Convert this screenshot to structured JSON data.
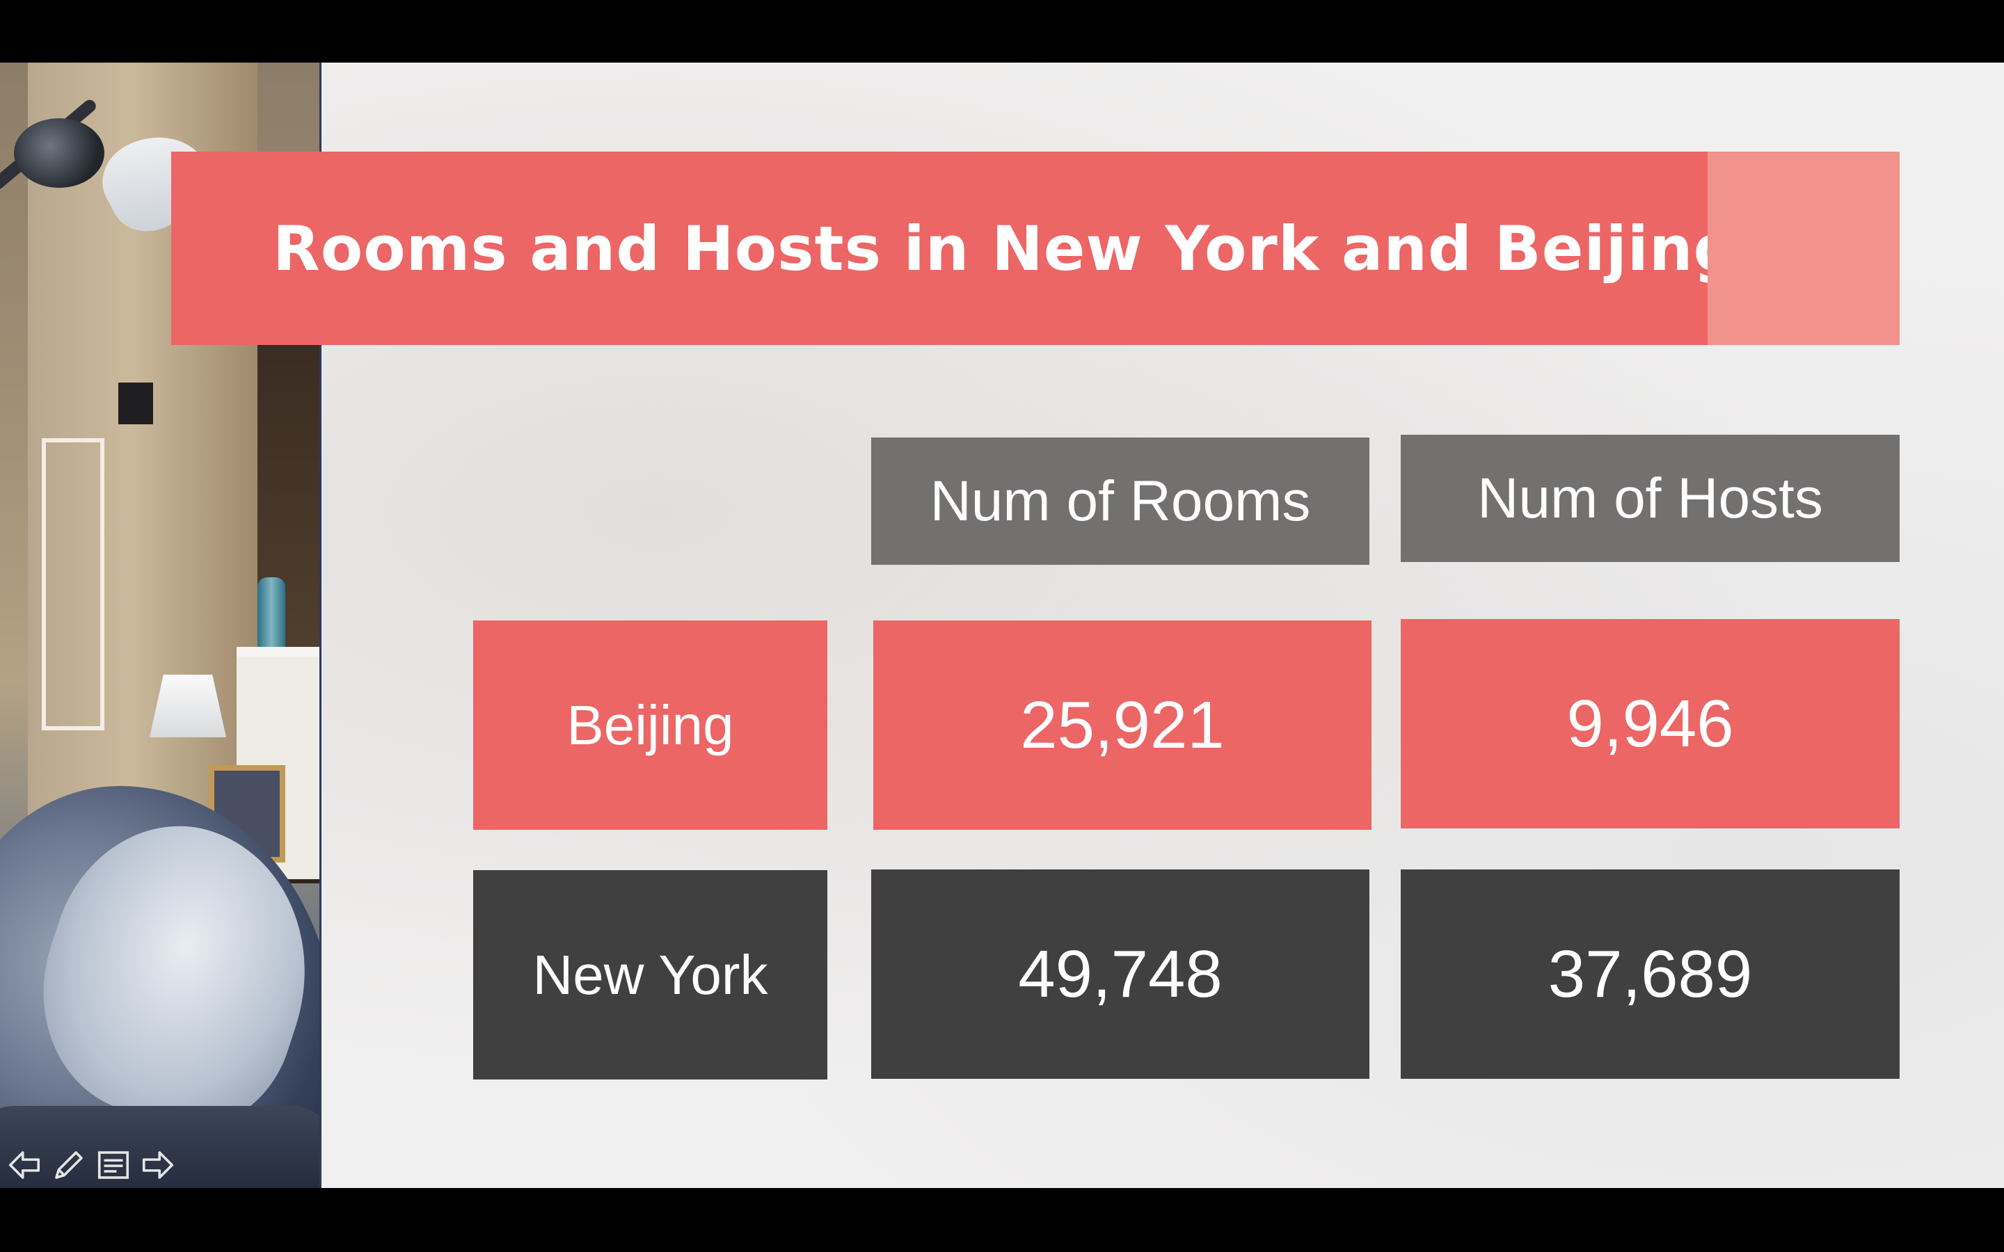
{
  "slide": {
    "title": "Rooms and Hosts in New York and Beijing",
    "table": {
      "headers": [
        "Num of Rooms",
        "Num of Hosts"
      ],
      "rows": [
        {
          "city": "Beijing",
          "rooms": "25,921",
          "hosts": "9,946"
        },
        {
          "city": "New York",
          "rooms": "49,748",
          "hosts": "37,689"
        }
      ]
    }
  },
  "colors": {
    "accent_red": "#ec6666",
    "accent_light": "#f1928c",
    "header_gray": "#737070",
    "dark_gray": "#404040"
  },
  "controls": {
    "icons": [
      "previous-slide-icon",
      "pen-icon",
      "slide-menu-icon",
      "next-slide-icon"
    ]
  }
}
